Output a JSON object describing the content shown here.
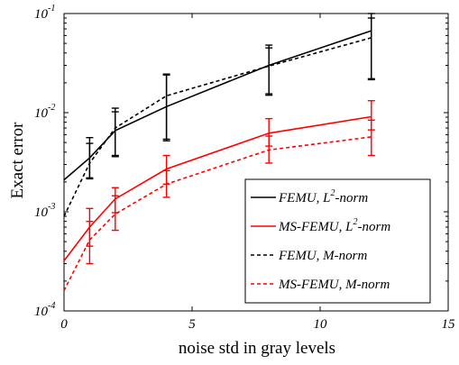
{
  "chart_data": {
    "type": "line",
    "title": "",
    "xlabel": "noise std in gray levels",
    "ylabel": "Exact error",
    "xlim": [
      0,
      15
    ],
    "ylim_exponents": [
      -4,
      -1
    ],
    "yscale": "log",
    "xticks": [
      "0",
      "5",
      "10",
      "15"
    ],
    "yticks": [
      {
        "base": "10",
        "exp": "-4"
      },
      {
        "base": "10",
        "exp": "-3"
      },
      {
        "base": "10",
        "exp": "-2"
      },
      {
        "base": "10",
        "exp": "-1"
      }
    ],
    "grid": false,
    "legend_position": "bottom-right",
    "series": [
      {
        "name": "FEMU, L²-norm",
        "legend": {
          "pre": "FEMU, L",
          "sup": "2",
          "post": "-norm"
        },
        "color": "#000000",
        "dash": "solid",
        "x": [
          0,
          1,
          2,
          4,
          8,
          12
        ],
        "y": [
          0.0021,
          0.0035,
          0.0066,
          0.0115,
          0.03,
          0.067
        ],
        "err_low": [
          null,
          0.0022,
          0.0037,
          0.0054,
          0.0155,
          0.022
        ],
        "err_high": [
          null,
          0.0056,
          0.0111,
          0.0245,
          0.048,
          0.1
        ]
      },
      {
        "name": "MS-FEMU, L²-norm",
        "legend": {
          "pre": "MS-FEMU, L",
          "sup": "2",
          "post": "-norm"
        },
        "color": "#ff0000",
        "dash": "solid",
        "x": [
          0,
          1,
          2,
          4,
          8,
          12
        ],
        "y": [
          0.00032,
          0.0007,
          0.00135,
          0.0027,
          0.0062,
          0.0091
        ],
        "err_low": [
          null,
          0.00045,
          0.00098,
          0.0019,
          0.0046,
          0.0067
        ],
        "err_high": [
          null,
          0.00108,
          0.00175,
          0.0037,
          0.0087,
          0.0132
        ]
      },
      {
        "name": "FEMU, M-norm",
        "legend": {
          "pre": "FEMU, M-norm",
          "sup": "",
          "post": ""
        },
        "color": "#000000",
        "dash": "dashed",
        "x": [
          0,
          1,
          2,
          4,
          8,
          12
        ],
        "y": [
          0.0009,
          0.0031,
          0.007,
          0.0148,
          0.0295,
          0.057
        ],
        "err_low": [
          null,
          0.00215,
          0.0036,
          0.0052,
          0.015,
          0.0215
        ],
        "err_high": [
          null,
          0.0049,
          0.0102,
          0.024,
          0.045,
          0.09
        ]
      },
      {
        "name": "MS-FEMU, M-norm",
        "legend": {
          "pre": "MS-FEMU, M-norm",
          "sup": "",
          "post": ""
        },
        "color": "#ff0000",
        "dash": "dashed",
        "x": [
          0,
          1,
          2,
          4,
          8,
          12
        ],
        "y": [
          0.00016,
          0.00052,
          0.00095,
          0.0019,
          0.0042,
          0.0057
        ],
        "err_low": [
          null,
          0.0003,
          0.00065,
          0.0014,
          0.0031,
          0.0037
        ],
        "err_high": [
          null,
          0.0008,
          0.00145,
          0.0026,
          0.0058,
          0.0084
        ]
      }
    ]
  }
}
